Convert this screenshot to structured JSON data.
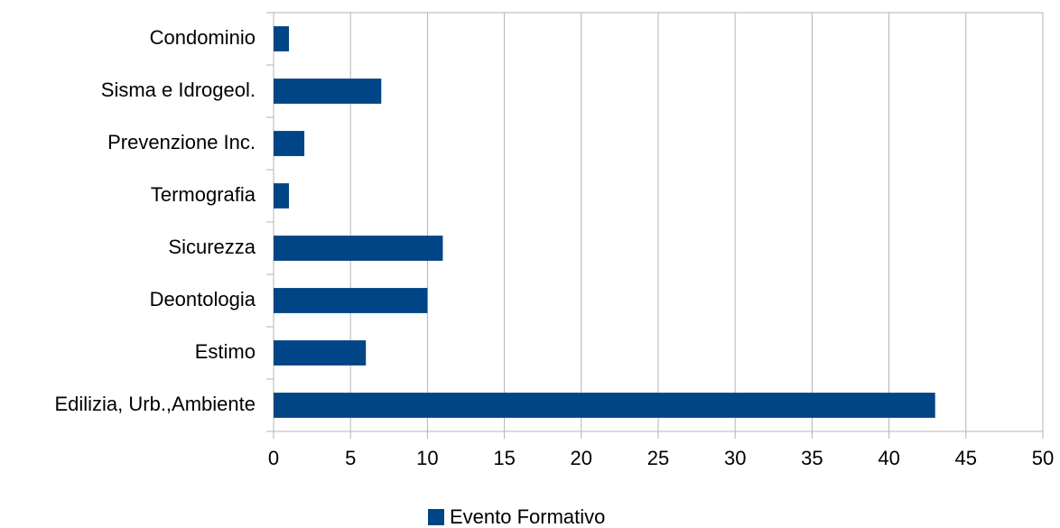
{
  "chart_data": {
    "type": "bar",
    "orientation": "horizontal",
    "categories": [
      "Condominio",
      "Sisma e Idrogeol.",
      "Prevenzione Inc.",
      "Termografia",
      "Sicurezza",
      "Deontologia",
      "Estimo",
      "Edilizia, Urb.,Ambiente"
    ],
    "series": [
      {
        "name": "Evento Formativo",
        "values": [
          1,
          7,
          2,
          1,
          11,
          10,
          6,
          43
        ],
        "color": "#004586"
      }
    ],
    "xlim": [
      0,
      50
    ],
    "xticks": [
      0,
      5,
      10,
      15,
      20,
      25,
      30,
      35,
      40,
      45,
      50
    ],
    "grid": "vertical",
    "legend_position": "bottom"
  }
}
